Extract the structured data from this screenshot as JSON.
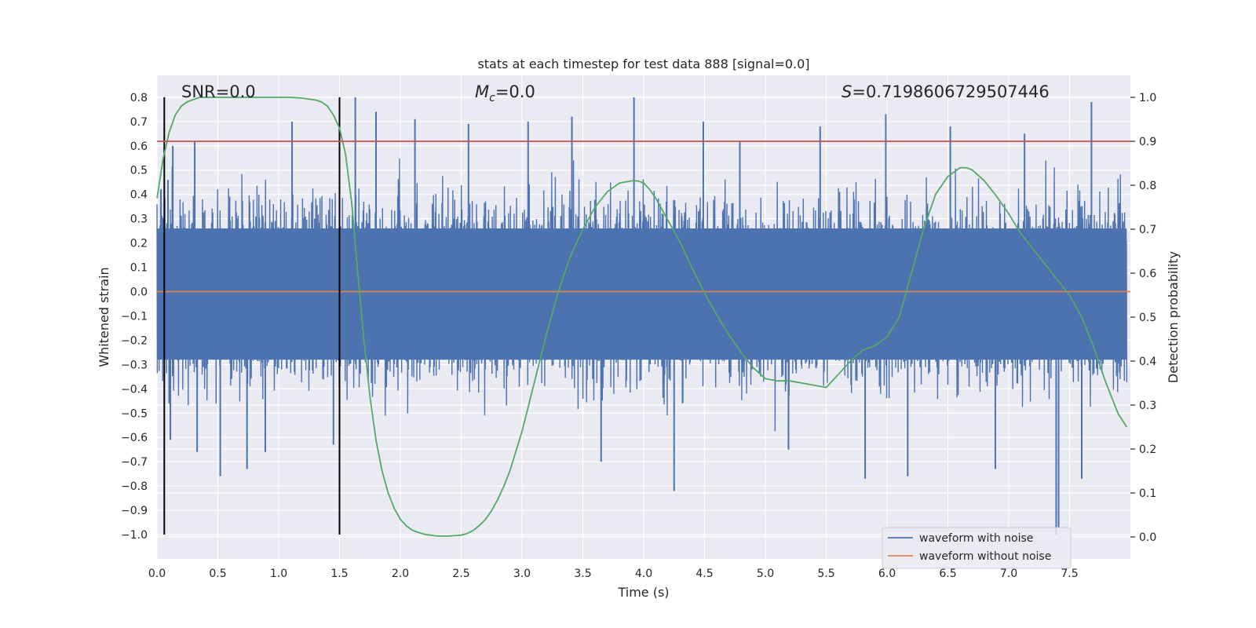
{
  "chart_data": {
    "type": "line",
    "title": "stats at each timestep for test data 888 [signal=0.0]",
    "xlabel": "Time (s)",
    "ylabel": "Whitened strain",
    "ylabel_right": "Detection probability",
    "xlim": [
      0.0,
      8.0
    ],
    "ylim": [
      -1.1,
      0.89
    ],
    "ylim_right": [
      -0.05,
      1.05
    ],
    "x_ticks": [
      0.0,
      0.5,
      1.0,
      1.5,
      2.0,
      2.5,
      3.0,
      3.5,
      4.0,
      4.5,
      5.0,
      5.5,
      6.0,
      6.5,
      7.0,
      7.5
    ],
    "x_tick_labels": [
      "0.0",
      "0.5",
      "1.0",
      "1.5",
      "2.0",
      "2.5",
      "3.0",
      "3.5",
      "4.0",
      "4.5",
      "5.0",
      "5.5",
      "6.0",
      "6.5",
      "7.0",
      "7.5"
    ],
    "y_ticks": [
      0.8,
      0.7,
      0.6,
      0.5,
      0.4,
      0.3,
      0.2,
      0.1,
      0.0,
      -0.1,
      -0.2,
      -0.3,
      -0.4,
      -0.5,
      -0.6,
      -0.7,
      -0.8,
      -0.9,
      -1.0
    ],
    "y_tick_labels": [
      "0.8",
      "0.7",
      "0.6",
      "0.5",
      "0.4",
      "0.3",
      "0.2",
      "0.1",
      "0.0",
      "−0.1",
      "−0.2",
      "−0.3",
      "−0.4",
      "−0.5",
      "−0.6",
      "−0.7",
      "−0.8",
      "−0.9",
      "−1.0"
    ],
    "y_right_ticks": [
      1.0,
      0.9,
      0.8,
      0.7,
      0.6,
      0.5,
      0.4,
      0.3,
      0.2,
      0.1,
      0.0
    ],
    "y_right_tick_labels": [
      "1.0",
      "0.9",
      "0.8",
      "0.7",
      "0.6",
      "0.5",
      "0.4",
      "0.3",
      "0.2",
      "0.1",
      "0.0"
    ],
    "grid": true,
    "legend_position": "bottom-right",
    "annotations": {
      "snr": "SNR=0.0",
      "mc_symbol": "M",
      "mc_sub": "c",
      "mc_value": "=0.0",
      "s_symbol": "S",
      "s_value": "=0.7198606729507446"
    },
    "vertical_lines": [
      0.06,
      1.5
    ],
    "vertical_line_range": [
      -1.0,
      0.8
    ],
    "threshold_probability": 0.9,
    "series": [
      {
        "name": "waveform with noise",
        "color": "#4c72b0",
        "axis": "left",
        "description_values": "noisy whitened strain, dense oscillation mostly within ±0.45 with peaks up to 0.8 and troughs to −1.0",
        "spikes": [
          {
            "x": 0.09,
            "y": 0.46
          },
          {
            "x": 0.1,
            "y": -0.46
          },
          {
            "x": 0.11,
            "y": -0.61
          },
          {
            "x": 0.13,
            "y": 0.6
          },
          {
            "x": 0.31,
            "y": 0.62
          },
          {
            "x": 0.33,
            "y": -0.66
          },
          {
            "x": 0.52,
            "y": -0.76
          },
          {
            "x": 0.74,
            "y": -0.73
          },
          {
            "x": 0.89,
            "y": -0.66
          },
          {
            "x": 1.11,
            "y": 0.7
          },
          {
            "x": 1.45,
            "y": -0.63
          },
          {
            "x": 1.63,
            "y": 0.8
          },
          {
            "x": 1.8,
            "y": 0.74
          },
          {
            "x": 2.12,
            "y": 0.71
          },
          {
            "x": 2.56,
            "y": 0.69
          },
          {
            "x": 3.05,
            "y": 0.7
          },
          {
            "x": 3.41,
            "y": 0.72
          },
          {
            "x": 3.65,
            "y": -0.7
          },
          {
            "x": 3.92,
            "y": 0.8
          },
          {
            "x": 4.25,
            "y": -0.82
          },
          {
            "x": 4.49,
            "y": 0.7
          },
          {
            "x": 4.79,
            "y": 0.62
          },
          {
            "x": 5.19,
            "y": -0.65
          },
          {
            "x": 5.45,
            "y": 0.68
          },
          {
            "x": 5.82,
            "y": -0.77
          },
          {
            "x": 5.99,
            "y": 0.73
          },
          {
            "x": 6.17,
            "y": -0.76
          },
          {
            "x": 6.52,
            "y": 0.68
          },
          {
            "x": 6.89,
            "y": -0.73
          },
          {
            "x": 7.13,
            "y": 0.65
          },
          {
            "x": 7.39,
            "y": -1.0
          },
          {
            "x": 7.41,
            "y": -0.97
          },
          {
            "x": 7.6,
            "y": -0.77
          },
          {
            "x": 7.68,
            "y": 0.78
          }
        ]
      },
      {
        "name": "waveform without noise",
        "color": "#dd8452",
        "axis": "left",
        "x": [
          0.0,
          8.0
        ],
        "values": [
          0.0,
          0.0
        ]
      },
      {
        "name": "",
        "color": "#55a868",
        "axis": "right",
        "x": [
          0.0,
          0.05,
          0.1,
          0.15,
          0.2,
          0.25,
          0.3,
          0.35,
          0.4,
          0.5,
          0.6,
          0.8,
          1.0,
          1.1,
          1.2,
          1.3,
          1.35,
          1.4,
          1.45,
          1.5,
          1.55,
          1.6,
          1.65,
          1.7,
          1.75,
          1.8,
          1.85,
          1.9,
          1.95,
          2.0,
          2.05,
          2.1,
          2.15,
          2.2,
          2.3,
          2.4,
          2.5,
          2.55,
          2.6,
          2.65,
          2.7,
          2.75,
          2.8,
          2.85,
          2.9,
          3.0,
          3.1,
          3.2,
          3.3,
          3.4,
          3.5,
          3.6,
          3.7,
          3.8,
          3.9,
          3.95,
          4.0,
          4.05,
          4.1,
          4.2,
          4.3,
          4.4,
          4.5,
          4.6,
          4.7,
          4.8,
          4.9,
          5.0,
          5.1,
          5.2,
          5.3,
          5.4,
          5.5,
          5.6,
          5.7,
          5.8,
          5.9,
          6.0,
          6.1,
          6.2,
          6.3,
          6.4,
          6.5,
          6.6,
          6.65,
          6.7,
          6.8,
          6.9,
          7.0,
          7.1,
          7.2,
          7.3,
          7.4,
          7.5,
          7.6,
          7.7,
          7.8,
          7.9,
          7.97
        ],
        "values": [
          0.77,
          0.86,
          0.92,
          0.96,
          0.98,
          0.99,
          0.995,
          1.0,
          1.0,
          1.0,
          1.0,
          1.0,
          1.0,
          1.0,
          0.998,
          0.994,
          0.99,
          0.98,
          0.96,
          0.93,
          0.87,
          0.76,
          0.6,
          0.45,
          0.32,
          0.22,
          0.15,
          0.1,
          0.065,
          0.04,
          0.025,
          0.015,
          0.01,
          0.006,
          0.002,
          0.002,
          0.004,
          0.008,
          0.015,
          0.026,
          0.04,
          0.06,
          0.085,
          0.115,
          0.15,
          0.24,
          0.35,
          0.46,
          0.56,
          0.64,
          0.7,
          0.75,
          0.785,
          0.805,
          0.81,
          0.81,
          0.805,
          0.79,
          0.77,
          0.72,
          0.67,
          0.61,
          0.555,
          0.505,
          0.46,
          0.42,
          0.385,
          0.36,
          0.355,
          0.355,
          0.35,
          0.345,
          0.34,
          0.37,
          0.4,
          0.425,
          0.435,
          0.455,
          0.5,
          0.6,
          0.7,
          0.78,
          0.82,
          0.84,
          0.84,
          0.835,
          0.81,
          0.775,
          0.735,
          0.69,
          0.655,
          0.62,
          0.585,
          0.55,
          0.5,
          0.43,
          0.35,
          0.28,
          0.25
        ]
      }
    ]
  }
}
